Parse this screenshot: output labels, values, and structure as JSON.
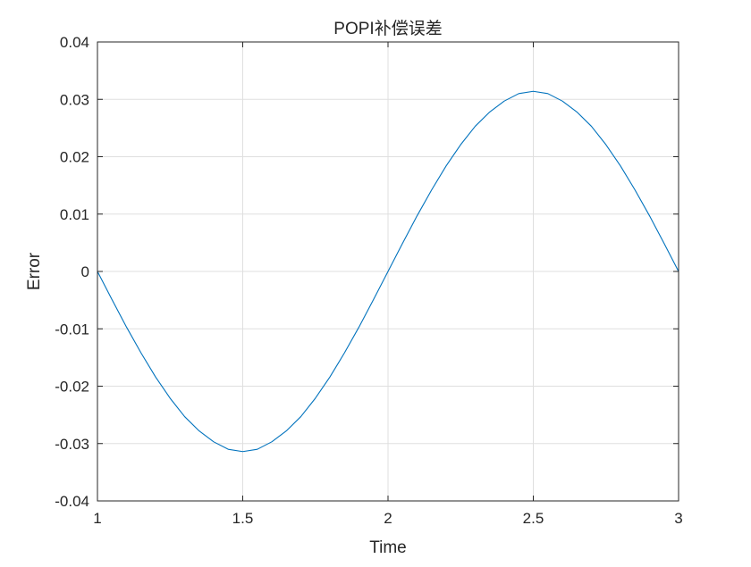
{
  "chart_data": {
    "type": "line",
    "title": "POPI补偿误差",
    "xlabel": "Time",
    "ylabel": "Error",
    "xlim": [
      1,
      3
    ],
    "ylim": [
      -0.04,
      0.04
    ],
    "xticks": [
      1,
      1.5,
      2,
      2.5,
      3
    ],
    "xtick_labels": [
      "1",
      "1.5",
      "2",
      "2.5",
      "3"
    ],
    "yticks": [
      -0.04,
      -0.03,
      -0.02,
      -0.01,
      0,
      0.01,
      0.02,
      0.03,
      0.04
    ],
    "ytick_labels": [
      "-0.04",
      "-0.03",
      "-0.02",
      "-0.01",
      "0",
      "0.01",
      "0.02",
      "0.03",
      "0.04"
    ],
    "grid": true,
    "legend": "none",
    "series": [
      {
        "color": "#0072bd",
        "x": [
          1.0,
          1.05,
          1.1,
          1.15,
          1.2,
          1.25,
          1.3,
          1.35,
          1.4,
          1.45,
          1.5,
          1.55,
          1.6,
          1.65,
          1.7,
          1.75,
          1.8,
          1.85,
          1.9,
          1.95,
          2.0,
          2.05,
          2.1,
          2.15,
          2.2,
          2.25,
          2.3,
          2.35,
          2.4,
          2.45,
          2.5,
          2.55,
          2.6,
          2.65,
          2.7,
          2.75,
          2.8,
          2.85,
          2.9,
          2.95,
          3.0
        ],
        "y": [
          0.0,
          -0.0049,
          -0.0097,
          -0.0142,
          -0.0184,
          -0.0221,
          -0.0253,
          -0.0278,
          -0.0297,
          -0.031,
          -0.0314,
          -0.031,
          -0.0297,
          -0.0278,
          -0.0253,
          -0.0221,
          -0.0184,
          -0.0142,
          -0.0097,
          -0.0049,
          0.0,
          0.0049,
          0.0097,
          0.0142,
          0.0184,
          0.0221,
          0.0253,
          0.0278,
          0.0297,
          0.031,
          0.0314,
          0.031,
          0.0297,
          0.0278,
          0.0253,
          0.0221,
          0.0184,
          0.0142,
          0.0097,
          0.0049,
          0.0
        ]
      }
    ]
  }
}
